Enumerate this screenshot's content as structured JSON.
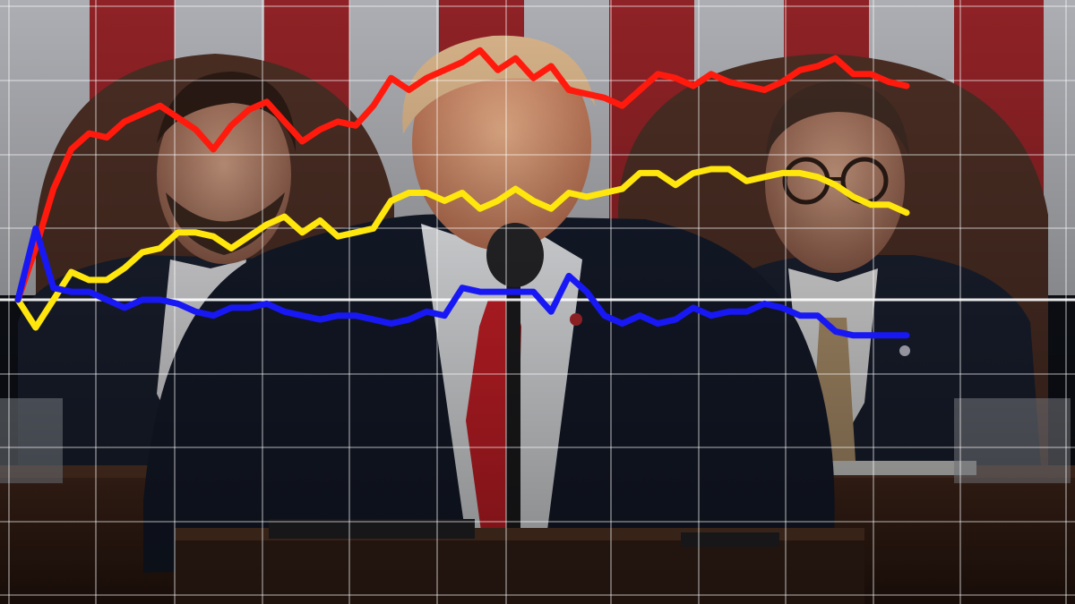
{
  "scene": {
    "description_colors": {
      "flag_red": "#a9262b",
      "flag_white": "#c9c9cf",
      "suit_dark": "#1b2234",
      "tie_red": "#d3222a",
      "tie_tan": "#b79a72",
      "podium_wood": "#3b2217",
      "chair_brown": "#4a2f24"
    }
  },
  "chart_data": {
    "type": "line",
    "title": "",
    "xlabel": "",
    "ylabel": "",
    "grid": true,
    "legend": "none",
    "baseline": 0,
    "xlim": [
      0,
      100
    ],
    "ylim": [
      -100,
      100
    ],
    "series": [
      {
        "color": "#ff1a0d",
        "x": [
          0,
          2,
          4,
          6,
          8,
          10,
          12,
          14,
          16,
          18,
          20,
          22,
          24,
          26,
          28,
          30,
          32,
          34,
          36,
          38,
          40,
          42,
          44,
          46,
          48,
          50,
          52,
          54,
          56,
          58,
          60,
          62,
          64,
          66,
          68,
          70,
          72,
          74,
          76,
          78,
          80,
          82,
          84,
          86,
          88,
          90,
          92,
          94,
          96,
          98,
          100
        ],
        "y": [
          0,
          13,
          28,
          38,
          42,
          41,
          45,
          47,
          49,
          46,
          43,
          38,
          44,
          48,
          50,
          45,
          40,
          43,
          45,
          44,
          49,
          56,
          53,
          56,
          58,
          60,
          63,
          58,
          61,
          56,
          59,
          53,
          52,
          51,
          49,
          53,
          57,
          56,
          54,
          57,
          55,
          54,
          53,
          55,
          58,
          59,
          61,
          57,
          57,
          55,
          54
        ]
      },
      {
        "color": "#ffe60d",
        "x": [
          0,
          2,
          4,
          6,
          8,
          10,
          12,
          14,
          16,
          18,
          20,
          22,
          24,
          26,
          28,
          30,
          32,
          34,
          36,
          38,
          40,
          42,
          44,
          46,
          48,
          50,
          52,
          54,
          56,
          58,
          60,
          62,
          64,
          66,
          68,
          70,
          72,
          74,
          76,
          78,
          80,
          82,
          84,
          86,
          88,
          90,
          92,
          94,
          96,
          98,
          100
        ],
        "y": [
          0,
          -7,
          0,
          7,
          5,
          5,
          8,
          12,
          13,
          17,
          17,
          16,
          13,
          16,
          19,
          21,
          17,
          20,
          16,
          17,
          18,
          25,
          27,
          27,
          25,
          27,
          23,
          25,
          28,
          25,
          23,
          27,
          26,
          27,
          28,
          32,
          32,
          29,
          32,
          33,
          33,
          30,
          31,
          32,
          32,
          31,
          29,
          26,
          24,
          24,
          22
        ]
      },
      {
        "color": "#1818f5",
        "x": [
          0,
          2,
          4,
          6,
          8,
          10,
          12,
          14,
          16,
          18,
          20,
          22,
          24,
          26,
          28,
          30,
          32,
          34,
          36,
          38,
          40,
          42,
          44,
          46,
          48,
          50,
          52,
          54,
          56,
          58,
          60,
          62,
          64,
          66,
          68,
          70,
          72,
          74,
          76,
          78,
          80,
          82,
          84,
          86,
          88,
          90,
          92,
          94,
          96,
          98,
          100
        ],
        "y": [
          0,
          18,
          3,
          2,
          2,
          0,
          -2,
          0,
          0,
          -1,
          -3,
          -4,
          -2,
          -2,
          -1,
          -3,
          -4,
          -5,
          -4,
          -4,
          -5,
          -6,
          -5,
          -3,
          -4,
          3,
          2,
          2,
          2,
          2,
          -3,
          6,
          2,
          -4,
          -6,
          -4,
          -6,
          -5,
          -2,
          -4,
          -3,
          -3,
          -1,
          -2,
          -4,
          -4,
          -8,
          -9,
          -9,
          -9,
          -9
        ]
      }
    ]
  }
}
